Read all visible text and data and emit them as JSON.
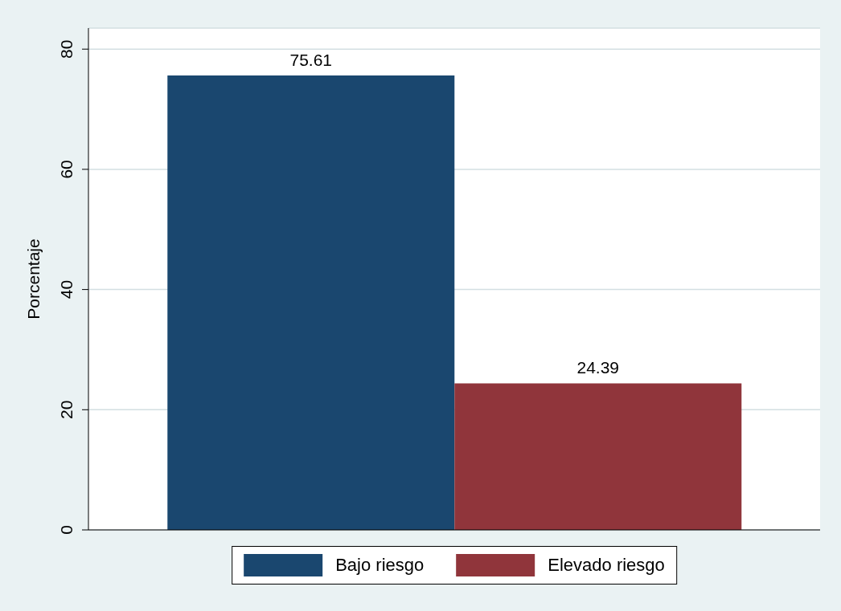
{
  "chart_data": {
    "type": "bar",
    "ylabel": "Porcentaje",
    "categories": [
      null
    ],
    "series": [
      {
        "name": "Bajo riesgo",
        "color": "#1a476f",
        "values": [
          75.61
        ]
      },
      {
        "name": "Elevado riesgo",
        "color": "#90353b",
        "values": [
          24.39
        ]
      }
    ],
    "ylim": [
      0,
      83.5
    ],
    "yticks": [
      0,
      20,
      40,
      60,
      80
    ],
    "grid": "y",
    "legend": "bottom",
    "data_labels": true
  }
}
